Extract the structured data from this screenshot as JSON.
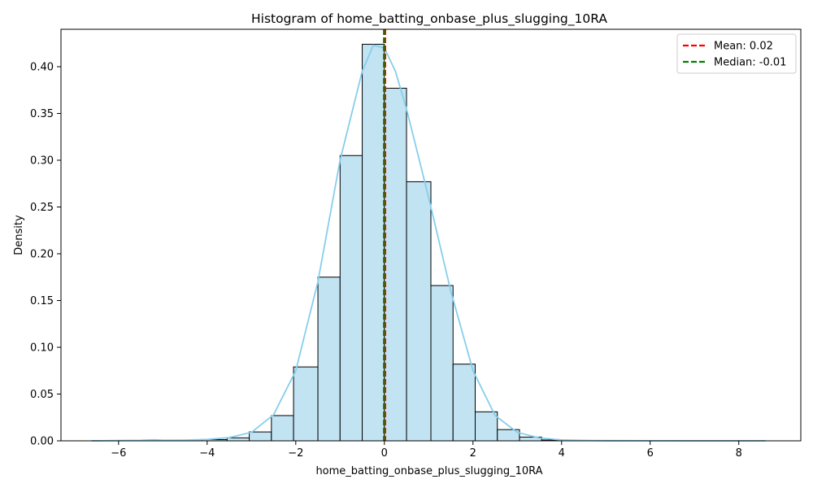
{
  "chart_data": {
    "type": "bar",
    "title": "Histogram of home_batting_onbase_plus_slugging_10RA",
    "xlabel": "home_batting_onbase_plus_slugging_10RA",
    "ylabel": "Density",
    "xlim": [
      -7.3,
      9.4
    ],
    "ylim": [
      0,
      0.44
    ],
    "xticks": [
      -6,
      -4,
      -2,
      0,
      2,
      4,
      6,
      8
    ],
    "xtick_labels": [
      "−6",
      "−4",
      "−2",
      "0",
      "2",
      "4",
      "6",
      "8"
    ],
    "yticks": [
      0.0,
      0.05,
      0.1,
      0.15,
      0.2,
      0.25,
      0.3,
      0.35,
      0.4
    ],
    "ytick_labels": [
      "0.00",
      "0.05",
      "0.10",
      "0.15",
      "0.20",
      "0.25",
      "0.30",
      "0.35",
      "0.40"
    ],
    "grid": false,
    "legend_position": "top-right",
    "bin_edges": [
      -6.6,
      -6.1,
      -5.6,
      -5.1,
      -4.6,
      -4.1,
      -3.55,
      -3.05,
      -2.55,
      -2.05,
      -1.5,
      -1.0,
      -0.5,
      0.0,
      0.5,
      1.05,
      1.55,
      2.05,
      2.55,
      3.05,
      3.55,
      4.05,
      4.55,
      5.05,
      5.55,
      6.05,
      6.6,
      7.1,
      7.6,
      8.1,
      8.6
    ],
    "values": [
      0.0002,
      0.0002,
      0.0003,
      0.0004,
      0.0006,
      0.0013,
      0.0032,
      0.0095,
      0.027,
      0.079,
      0.175,
      0.305,
      0.424,
      0.377,
      0.277,
      0.166,
      0.082,
      0.031,
      0.012,
      0.004,
      0.0009,
      0.0004,
      0.0002,
      0.0001,
      0.0001,
      0.0001,
      0.0001,
      0.0001,
      0.0001,
      0.0001
    ],
    "kde": {
      "x": [
        -6.6,
        -6.0,
        -5.5,
        -5.2,
        -5.0,
        -4.5,
        -4.0,
        -3.5,
        -3.0,
        -2.5,
        -2.0,
        -1.5,
        -1.0,
        -0.5,
        -0.25,
        0.0,
        0.25,
        0.5,
        1.0,
        1.5,
        2.0,
        2.5,
        3.0,
        3.5,
        4.0,
        4.5,
        5.0,
        6.0,
        7.0,
        8.6
      ],
      "y": [
        0.0,
        0.0003,
        0.0005,
        0.0012,
        0.0006,
        0.0008,
        0.0015,
        0.0035,
        0.009,
        0.028,
        0.075,
        0.17,
        0.3,
        0.395,
        0.423,
        0.42,
        0.395,
        0.355,
        0.26,
        0.16,
        0.075,
        0.027,
        0.009,
        0.003,
        0.001,
        0.0004,
        0.0002,
        0.0001,
        0.0,
        0.0
      ]
    },
    "mean": 0.02,
    "median": -0.01,
    "legend": [
      "Mean: 0.02",
      "Median: -0.01"
    ],
    "colors": {
      "bar_fill": "#c1e3f2",
      "bar_edge": "#000000",
      "kde": "#87ceeb",
      "mean": "#ff0000",
      "median": "#008000"
    }
  }
}
